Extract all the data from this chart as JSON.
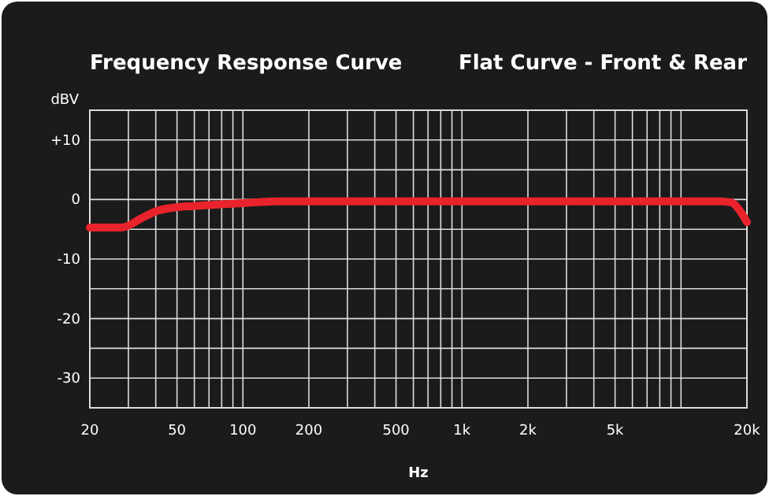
{
  "chart_data": {
    "type": "line",
    "title": "Frequency Response Curve",
    "subtitle": "Flat Curve - Front & Rear",
    "xlabel": "Hz",
    "ylabel": "dBV",
    "log": "x",
    "grid": true,
    "marker": "none",
    "line_style": "solid",
    "xlim": [
      20,
      20000
    ],
    "ylim": [
      -35,
      15
    ],
    "xticks": [
      20,
      {
        "value": 30,
        "label": null
      },
      {
        "value": 40,
        "label": null
      },
      50,
      {
        "value": 60,
        "label": null
      },
      {
        "value": 70,
        "label": null
      },
      {
        "value": 80,
        "label": null
      },
      {
        "value": 90,
        "label": null
      },
      100,
      200,
      {
        "value": 300,
        "label": null
      },
      {
        "value": 400,
        "label": null
      },
      500,
      {
        "value": 600,
        "label": null
      },
      {
        "value": 700,
        "label": null
      },
      {
        "value": 800,
        "label": null
      },
      {
        "value": 900,
        "label": null
      },
      {
        "value": 1000,
        "label": "1k"
      },
      {
        "value": 2000,
        "label": "2k"
      },
      {
        "value": 3000,
        "label": null
      },
      {
        "value": 4000,
        "label": null
      },
      {
        "value": 5000,
        "label": "5k"
      },
      {
        "value": 6000,
        "label": null
      },
      {
        "value": 7000,
        "label": null
      },
      {
        "value": 8000,
        "label": null
      },
      {
        "value": 9000,
        "label": null
      },
      {
        "value": 10000,
        "label": null
      },
      {
        "value": 20000,
        "label": "20k"
      }
    ],
    "yticks": [
      -30,
      {
        "value": -25,
        "label": null
      },
      -20,
      {
        "value": -15,
        "label": null
      },
      -10,
      {
        "value": -5,
        "label": null
      },
      0,
      {
        "value": 5,
        "label": null
      },
      {
        "value": 10,
        "label": "+10"
      }
    ],
    "series": [
      {
        "color": "#e8232b",
        "x": [
          20,
          28,
          35,
          40,
          50,
          60,
          80,
          100,
          150,
          300,
          1000,
          5000,
          15000,
          17000,
          18500,
          20000
        ],
        "values": [
          -4.7,
          -4.7,
          -3,
          -2,
          -1.3,
          -1.1,
          -0.8,
          -0.6,
          -0.3,
          -0.3,
          -0.3,
          -0.3,
          -0.3,
          -0.5,
          -1.8,
          -3.8
        ]
      }
    ]
  }
}
